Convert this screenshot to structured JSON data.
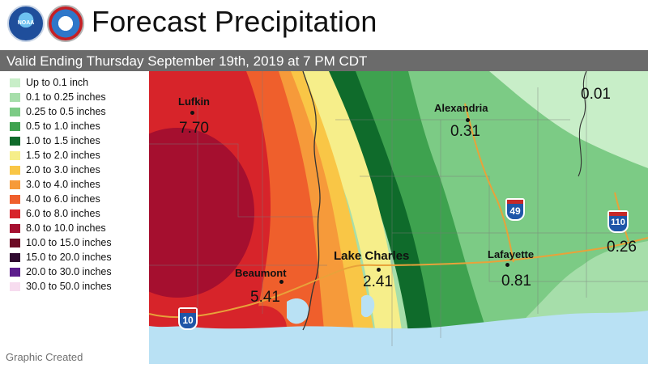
{
  "header": {
    "title": "Forecast Precipitation",
    "logos": [
      {
        "name": "noaa-logo",
        "text": "NOAA"
      },
      {
        "name": "nws-logo",
        "text": "NATIONAL WEATHER SERVICE"
      }
    ]
  },
  "subtitle": "Valid Ending Thursday September 19th, 2019 at 7 PM CDT",
  "legend": {
    "items": [
      {
        "label": "Up to 0.1 inch",
        "color": "#c8eec8"
      },
      {
        "label": "0.1 to 0.25 inches",
        "color": "#a6deaa"
      },
      {
        "label": "0.25 to 0.5 inches",
        "color": "#7ccb85"
      },
      {
        "label": "0.5 to 1.0 inches",
        "color": "#3ea24f"
      },
      {
        "label": "1.0 to 1.5 inches",
        "color": "#0f6b2b"
      },
      {
        "label": "1.5 to 2.0 inches",
        "color": "#f6ee8a"
      },
      {
        "label": "2.0 to 3.0 inches",
        "color": "#f9c646"
      },
      {
        "label": "3.0 to 4.0 inches",
        "color": "#f69a3a"
      },
      {
        "label": "4.0 to 6.0 inches",
        "color": "#ef5f2c"
      },
      {
        "label": "6.0 to 8.0 inches",
        "color": "#d7242a"
      },
      {
        "label": "8.0 to 10.0 inches",
        "color": "#a50f2f"
      },
      {
        "label": "10.0 to 15.0 inches",
        "color": "#6d0a25"
      },
      {
        "label": "15.0 to 20.0 inches",
        "color": "#300a30"
      },
      {
        "label": "20.0 to 30.0 inches",
        "color": "#5c1d8c"
      },
      {
        "label": "30.0 to 50.0 inches",
        "color": "#f7dcef"
      }
    ]
  },
  "footer": "Graphic Created",
  "map": {
    "cities": [
      {
        "name": "Lufkin",
        "value": "7.70"
      },
      {
        "name": "Alexandria",
        "value": "0.31"
      },
      {
        "name": "Lake Charles",
        "value": "2.41"
      },
      {
        "name": "Lafayette",
        "value": "0.81"
      },
      {
        "name": "Beaumont",
        "value": "5.41"
      }
    ],
    "other_values": [
      "0.01",
      "0.26"
    ],
    "interstates": [
      "49",
      "110",
      "10"
    ],
    "water_color": "#b9e1f4"
  }
}
